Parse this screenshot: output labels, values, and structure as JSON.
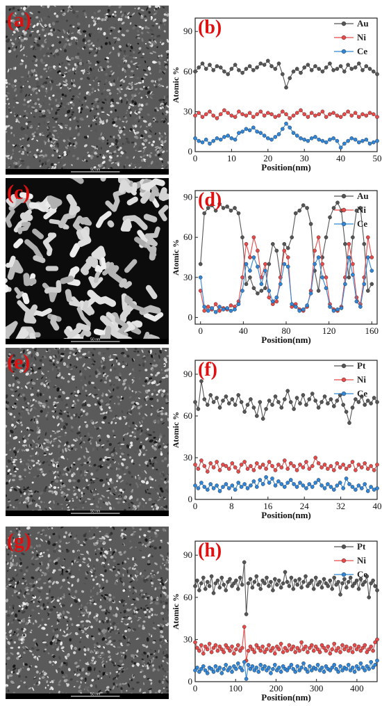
{
  "images": [
    {
      "label": "(a)",
      "scale_label": "50 nm",
      "texture": "fine"
    },
    {
      "label": "(c)",
      "scale_label": "50 nm",
      "texture": "blobs"
    },
    {
      "label": "(e)",
      "scale_label": "50 nm",
      "texture": "fine"
    },
    {
      "label": "(g)",
      "scale_label": "50 nm",
      "texture": "fine"
    }
  ],
  "chart_data": [
    {
      "panel_label": "(b)",
      "type": "line",
      "xlabel": "Position(nm)",
      "ylabel": "Atomic %",
      "xlim": [
        0,
        50
      ],
      "ylim": [
        0,
        100
      ],
      "xticks": [
        0,
        10,
        20,
        30,
        40,
        50
      ],
      "yticks": [
        0,
        30,
        60,
        90
      ],
      "legend_placement": "top-right",
      "series": [
        {
          "name": "Au",
          "color": "#555555",
          "values": [
            60,
            63,
            66,
            62,
            65,
            61,
            64,
            63,
            60,
            58,
            62,
            65,
            61,
            59,
            62,
            64,
            61,
            63,
            66,
            65,
            68,
            64,
            62,
            66,
            58,
            48,
            55,
            60,
            62,
            59,
            63,
            65,
            61,
            64,
            62,
            60,
            63,
            66,
            61,
            62,
            64,
            60,
            65,
            62,
            63,
            66,
            61,
            64,
            62,
            60,
            58
          ]
        },
        {
          "name": "Ni",
          "color": "#e84a4a",
          "values": [
            27,
            29,
            26,
            28,
            30,
            27,
            25,
            28,
            31,
            29,
            27,
            26,
            30,
            28,
            27,
            29,
            26,
            28,
            30,
            27,
            29,
            28,
            26,
            27,
            30,
            28,
            25,
            27,
            29,
            31,
            28,
            26,
            29,
            27,
            28,
            30,
            26,
            28,
            29,
            27,
            26,
            28,
            30,
            27,
            29,
            26,
            28,
            27,
            29,
            28,
            26
          ]
        },
        {
          "name": "Ce",
          "color": "#2f86d8",
          "values": [
            10,
            8,
            7,
            9,
            6,
            8,
            10,
            9,
            11,
            12,
            10,
            9,
            14,
            15,
            17,
            16,
            18,
            15,
            14,
            12,
            10,
            9,
            11,
            13,
            17,
            21,
            18,
            14,
            12,
            10,
            9,
            8,
            10,
            11,
            9,
            8,
            7,
            9,
            10,
            8,
            3,
            6,
            8,
            10,
            9,
            7,
            8,
            9,
            6,
            7,
            8
          ]
        }
      ]
    },
    {
      "panel_label": "(d)",
      "type": "line",
      "xlabel": "Position(nm)",
      "ylabel": "Atomic %",
      "xlim": [
        -5,
        165
      ],
      "ylim": [
        -5,
        95
      ],
      "xticks": [
        0,
        40,
        80,
        120,
        160
      ],
      "yticks": [
        0,
        30,
        60,
        90
      ],
      "legend_placement": "top-right",
      "series": [
        {
          "name": "Au",
          "color": "#555555",
          "values": [
            40,
            78,
            82,
            84,
            80,
            85,
            82,
            83,
            80,
            82,
            78,
            60,
            25,
            30,
            22,
            18,
            20,
            22,
            40,
            55,
            50,
            30,
            55,
            52,
            60,
            78,
            80,
            84,
            82,
            70,
            35,
            20,
            45,
            60,
            75,
            82,
            86,
            80,
            55,
            30,
            60,
            80,
            82,
            55,
            20,
            25
          ]
        },
        {
          "name": "Ni",
          "color": "#e84a4a",
          "values": [
            20,
            5,
            8,
            6,
            10,
            5,
            7,
            6,
            9,
            8,
            12,
            30,
            55,
            45,
            60,
            50,
            30,
            40,
            15,
            10,
            12,
            30,
            50,
            45,
            8,
            10,
            6,
            5,
            8,
            20,
            50,
            60,
            40,
            30,
            10,
            6,
            5,
            8,
            30,
            55,
            40,
            15,
            10,
            30,
            60,
            45
          ]
        },
        {
          "name": "Ce",
          "color": "#2f86d8",
          "values": [
            30,
            8,
            5,
            7,
            4,
            8,
            6,
            7,
            5,
            6,
            10,
            20,
            40,
            35,
            45,
            38,
            25,
            35,
            20,
            12,
            15,
            25,
            40,
            38,
            10,
            8,
            5,
            6,
            9,
            18,
            40,
            45,
            30,
            22,
            8,
            5,
            6,
            7,
            25,
            45,
            32,
            12,
            8,
            25,
            45,
            35
          ]
        }
      ]
    },
    {
      "panel_label": "(f)",
      "type": "line",
      "xlabel": "Position(nm)",
      "ylabel": "Atomic %",
      "xlim": [
        0,
        40
      ],
      "ylim": [
        0,
        100
      ],
      "xticks": [
        0,
        8,
        16,
        24,
        32,
        40
      ],
      "yticks": [
        0,
        30,
        60,
        90
      ],
      "legend_placement": "top-right",
      "series": [
        {
          "name": "Pt",
          "color": "#555555",
          "values": [
            70,
            65,
            85,
            72,
            68,
            75,
            70,
            73,
            66,
            71,
            74,
            69,
            72,
            68,
            75,
            70,
            63,
            68,
            72,
            66,
            60,
            70,
            58,
            65,
            71,
            68,
            74,
            70,
            66,
            72,
            78,
            70,
            65,
            73,
            69,
            75,
            68,
            72,
            76,
            71,
            66,
            70,
            74,
            69,
            72,
            67,
            71,
            75,
            68,
            63,
            55,
            66,
            72,
            70,
            74,
            68,
            71,
            69,
            73,
            70
          ]
        },
        {
          "name": "Ni",
          "color": "#e84a4a",
          "values": [
            25,
            22,
            28,
            24,
            20,
            26,
            23,
            27,
            21,
            25,
            24,
            22,
            26,
            23,
            20,
            25,
            27,
            22,
            24,
            21,
            26,
            23,
            25,
            22,
            27,
            24,
            21,
            25,
            23,
            28,
            22,
            26,
            24,
            21,
            25,
            23,
            27,
            22,
            24,
            30,
            26,
            23,
            25,
            22,
            24,
            21,
            26,
            23,
            25,
            22,
            24,
            27,
            21,
            25,
            23,
            26,
            22,
            24,
            21,
            25
          ]
        },
        {
          "name": "Ce",
          "color": "#2f86d8",
          "values": [
            10,
            8,
            12,
            9,
            7,
            11,
            8,
            10,
            6,
            9,
            11,
            8,
            10,
            7,
            12,
            9,
            11,
            8,
            10,
            13,
            9,
            14,
            11,
            16,
            12,
            15,
            10,
            13,
            11,
            9,
            12,
            14,
            11,
            9,
            12,
            10,
            8,
            11,
            9,
            12,
            14,
            10,
            8,
            11,
            9,
            7,
            10,
            12,
            8,
            15,
            11,
            9,
            7,
            10,
            8,
            11,
            6,
            9,
            7,
            8
          ]
        }
      ]
    },
    {
      "panel_label": "(h)",
      "type": "line",
      "xlabel": "Position(nm)",
      "ylabel": "Atomic %",
      "xlim": [
        0,
        450
      ],
      "ylim": [
        0,
        100
      ],
      "xticks": [
        0,
        100,
        200,
        300,
        400
      ],
      "yticks": [
        0,
        30,
        60,
        90
      ],
      "legend_placement": "top-right",
      "series": [
        {
          "name": "Pt",
          "color": "#555555",
          "values": [
            68,
            72,
            65,
            70,
            74,
            66,
            71,
            68,
            75,
            63,
            70,
            72,
            67,
            74,
            69,
            65,
            71,
            73,
            68,
            70,
            72,
            66,
            74,
            69,
            85,
            48,
            70,
            73,
            67,
            71,
            75,
            69,
            66,
            72,
            70,
            74,
            68,
            71,
            65,
            73,
            69,
            72,
            67,
            70,
            78,
            71,
            68,
            74,
            66,
            72,
            69,
            73,
            67,
            71,
            75,
            68,
            70,
            72,
            66,
            74,
            69,
            71,
            67,
            73,
            70,
            68,
            72,
            66,
            74,
            69,
            71,
            62,
            70,
            73,
            67,
            71,
            74,
            68,
            70,
            72,
            66,
            73,
            69,
            71,
            75,
            60,
            70,
            72,
            68,
            65
          ]
        },
        {
          "name": "Ni",
          "color": "#e84a4a",
          "values": [
            28,
            24,
            22,
            26,
            20,
            25,
            23,
            27,
            21,
            24,
            26,
            22,
            25,
            23,
            21,
            26,
            24,
            22,
            25,
            20,
            23,
            26,
            22,
            24,
            39,
            15,
            22,
            25,
            23,
            21,
            26,
            24,
            22,
            25,
            21,
            23,
            26,
            22,
            24,
            20,
            25,
            23,
            27,
            21,
            24,
            22,
            26,
            23,
            25,
            21,
            24,
            22,
            28,
            23,
            25,
            21,
            24,
            26,
            22,
            25,
            23,
            21,
            26,
            24,
            22,
            25,
            20,
            23,
            27,
            22,
            24,
            21,
            26,
            23,
            25,
            22,
            24,
            21,
            26,
            23,
            25,
            22,
            24,
            26,
            21,
            23,
            25,
            22,
            28,
            30
          ]
        },
        {
          "name": "Ce",
          "color": "#2f86d8",
          "values": [
            8,
            10,
            7,
            9,
            11,
            8,
            6,
            10,
            9,
            7,
            11,
            8,
            10,
            6,
            9,
            12,
            8,
            10,
            7,
            11,
            9,
            13,
            10,
            8,
            14,
            2,
            12,
            9,
            11,
            8,
            10,
            7,
            12,
            9,
            11,
            8,
            10,
            6,
            9,
            12,
            8,
            10,
            7,
            11,
            9,
            8,
            10,
            12,
            9,
            7,
            11,
            8,
            10,
            13,
            9,
            7,
            11,
            8,
            10,
            9,
            12,
            8,
            10,
            7,
            11,
            9,
            8,
            10,
            12,
            9,
            7,
            11,
            8,
            10,
            9,
            12,
            8,
            10,
            7,
            11,
            9,
            13,
            10,
            8,
            11,
            9,
            14,
            10,
            12,
            15
          ]
        }
      ]
    }
  ]
}
